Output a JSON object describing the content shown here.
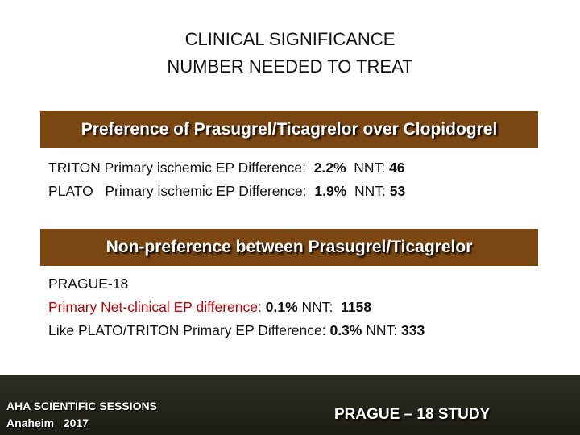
{
  "title": [
    "CLINICAL SIGNIFICANCE",
    "NUMBER NEEDED TO TREAT"
  ],
  "sections": [
    {
      "heading": "Preference of Prasugrel/Ticagrelor over Clopidogrel",
      "lines": [
        [
          "TRITON Primary ischemic EP Difference:  ",
          "2.2%",
          "  NNT: ",
          "46"
        ],
        [
          "PLATO   Primary ischemic EP Difference:  ",
          "1.9%",
          "  NNT: ",
          "53"
        ]
      ]
    },
    {
      "heading": "Non-preference between Prasugrel/Ticagrelor",
      "lines": [
        [
          "PRAGUE-18"
        ],
        [
          "Primary Net-clinical EP difference",
          ": ",
          "0.1%",
          " NNT:  ",
          "1158"
        ],
        [
          "Like PLATO/TRITON Primary EP Difference: ",
          "0.3%",
          " NNT: ",
          "333"
        ]
      ]
    }
  ],
  "footer": {
    "left": [
      "AHA SCIENTIFIC SESSIONS",
      "Anaheim   2017"
    ],
    "right": "PRAGUE – 18 STUDY"
  }
}
